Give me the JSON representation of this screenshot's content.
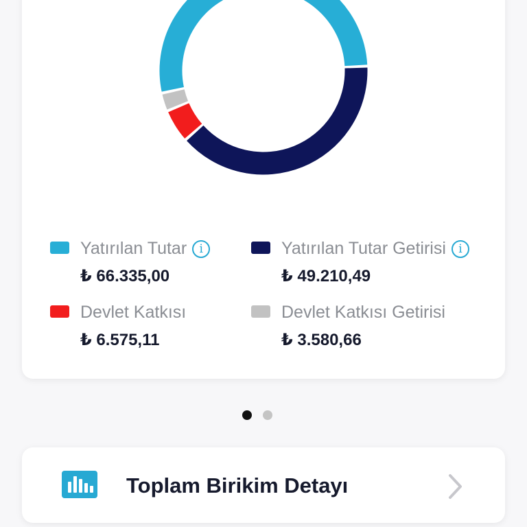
{
  "currency_symbol": "₺",
  "chart_data": {
    "type": "pie",
    "variant": "donut",
    "categories": [
      "Yatırılan Tutar",
      "Yatırılan Tutar Getirisi",
      "Devlet Katkısı",
      "Devlet Katkısı Getirisi"
    ],
    "values": [
      66335.0,
      49210.49,
      6575.11,
      3580.66
    ],
    "colors": [
      "#27aed6",
      "#0e1559",
      "#f21d1d",
      "#c2c2c2"
    ]
  },
  "legend": [
    {
      "label": "Yatırılan Tutar",
      "value": "66.335,00",
      "color": "#27aed6",
      "has_info": true
    },
    {
      "label": "Yatırılan Tutar Getirisi",
      "value": "49.210,49",
      "color": "#0e1559",
      "has_info": true
    },
    {
      "label": "Devlet Katkısı",
      "value": "6.575,11",
      "color": "#f21d1d",
      "has_info": false
    },
    {
      "label": "Devlet Katkısı Getirisi",
      "value": "3.580,66",
      "color": "#c2c2c2",
      "has_info": false
    }
  ],
  "pager": {
    "page_count": 2,
    "active_index": 0,
    "active_color": "#111111",
    "inactive_color": "#c4c4c4"
  },
  "detail": {
    "title": "Toplam Birikim Detayı",
    "icon": "bar-chart-icon",
    "chevron": "chevron-right-icon",
    "icon_color": "#27a9d3"
  }
}
